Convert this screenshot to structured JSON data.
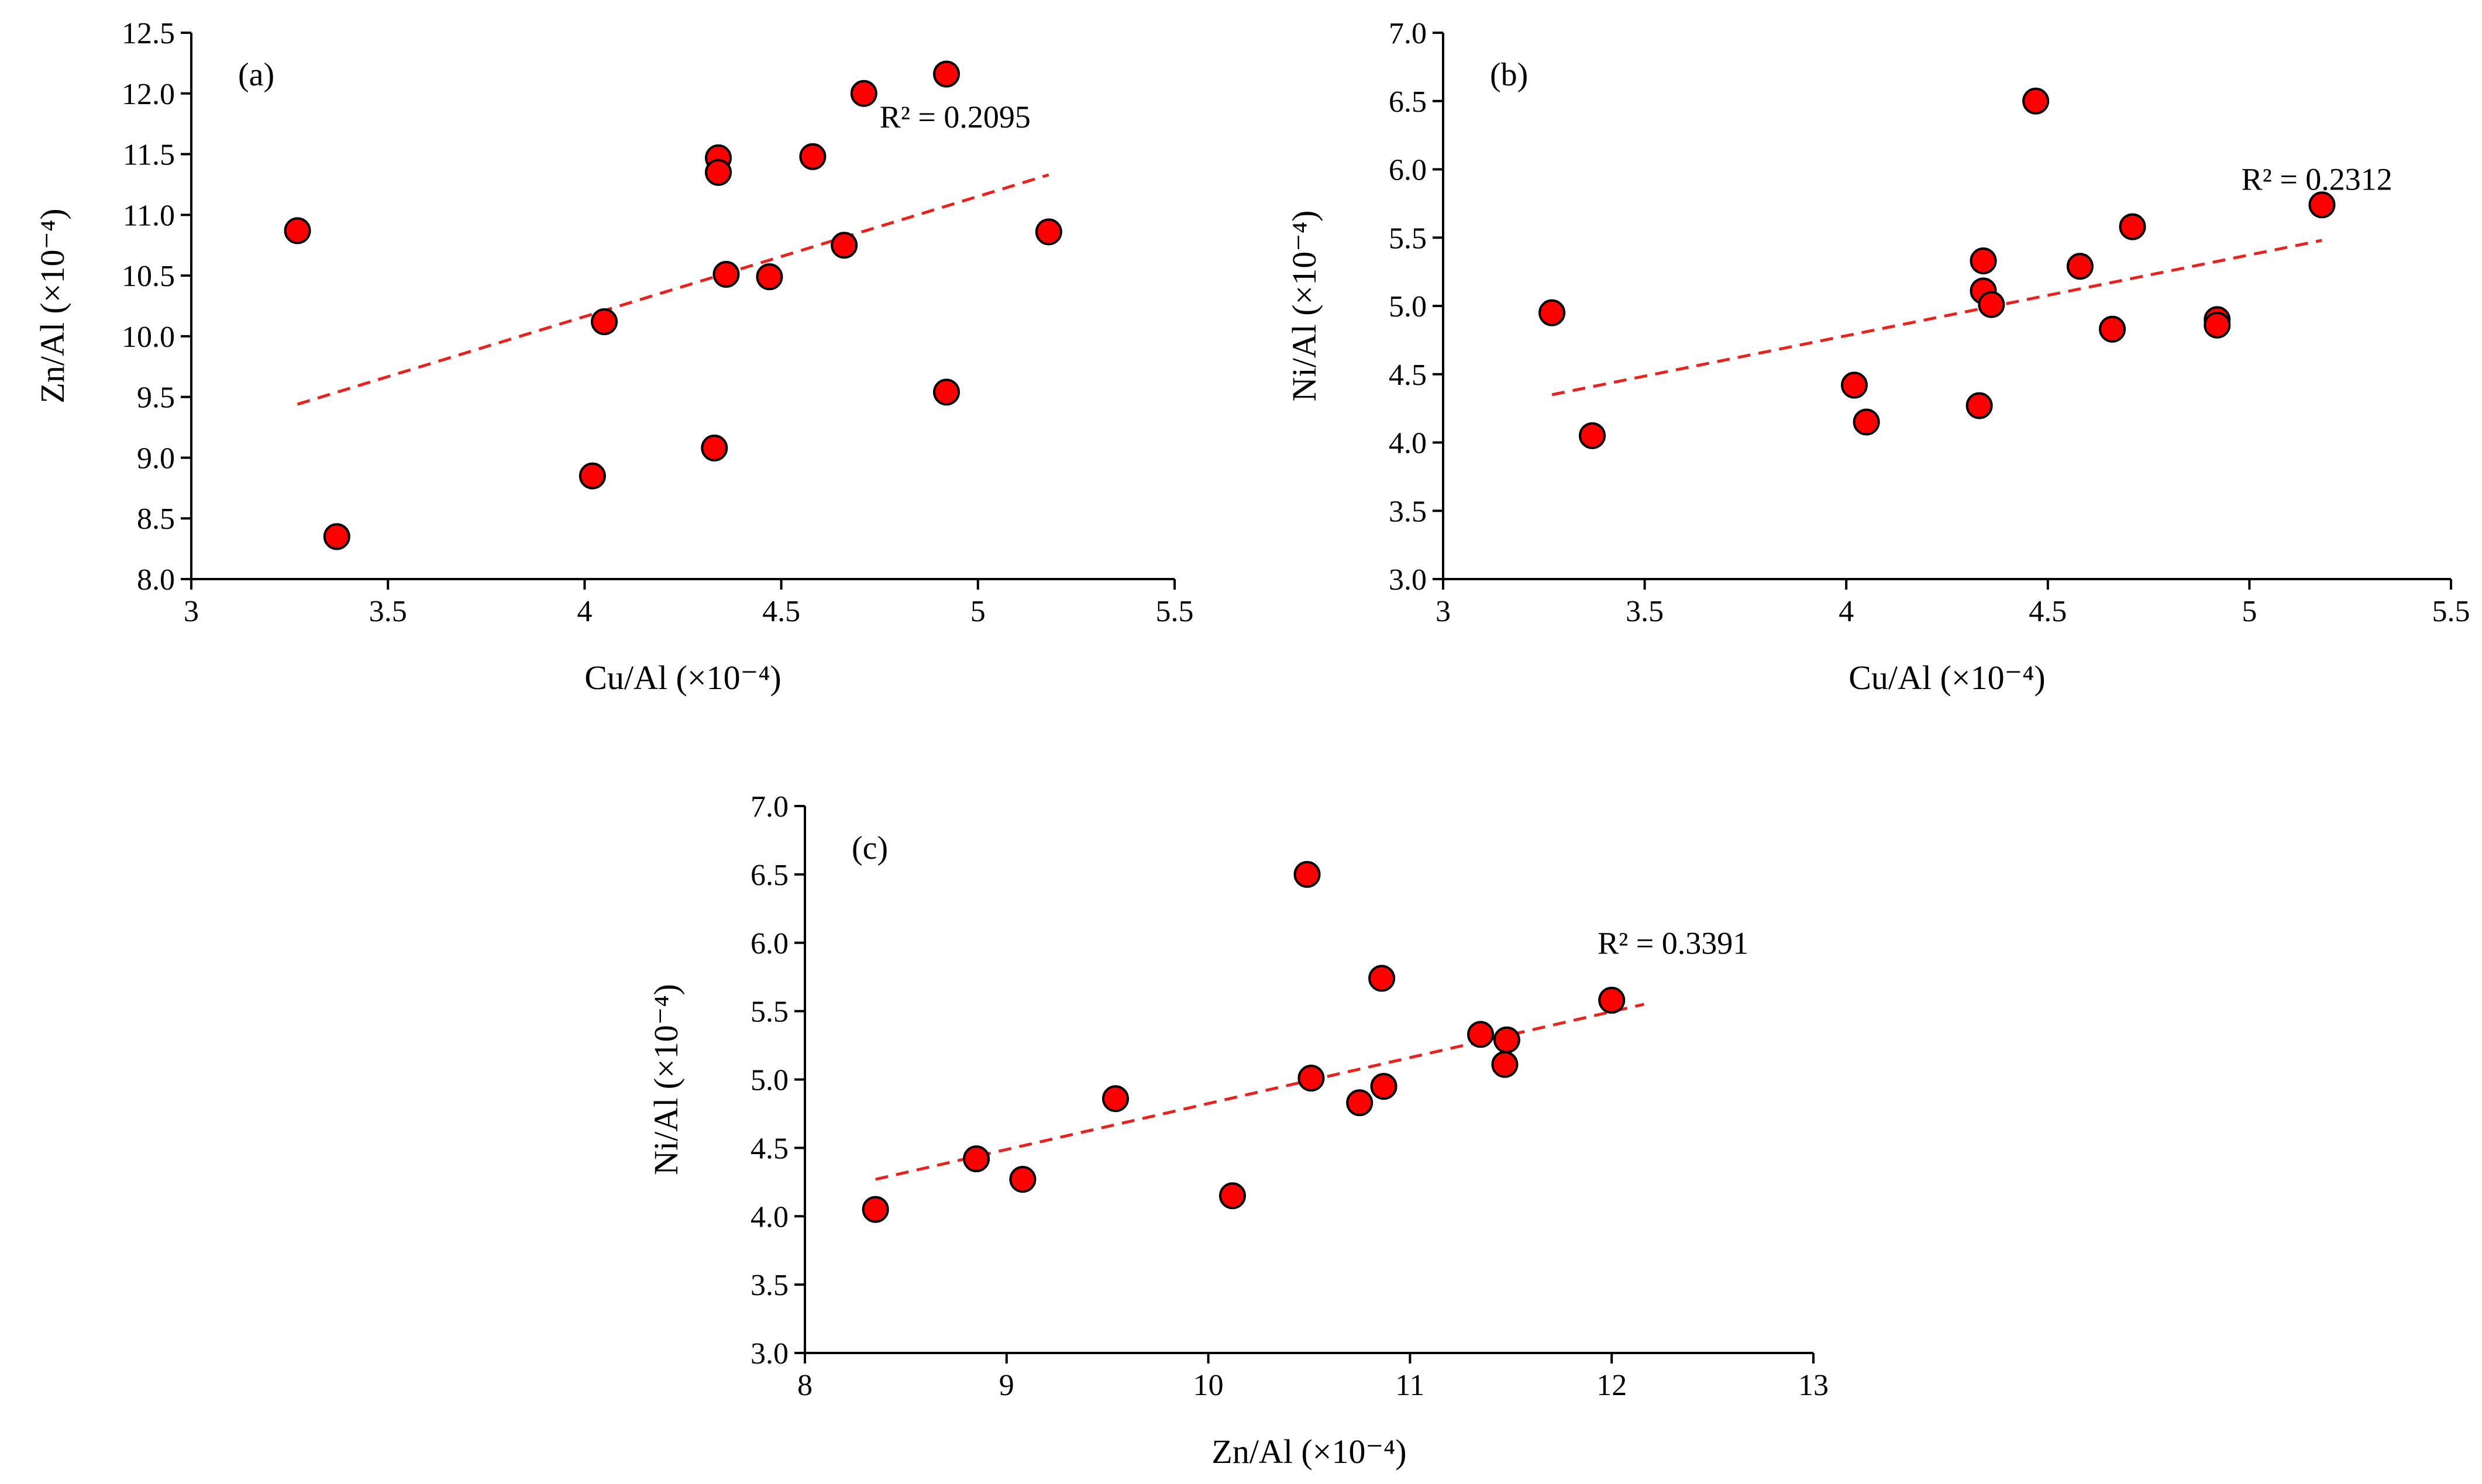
{
  "figure": {
    "marker_color": "#ff0000",
    "marker_edge": "#000000",
    "trend_color": "#e8231e"
  },
  "chart_data": [
    {
      "type": "scatter",
      "panel": "(a)",
      "xlabel": "Cu/Al (×10⁻⁴)",
      "ylabel": "Zn/Al (×10⁻⁴)",
      "xlim": [
        3,
        5.5
      ],
      "ylim": [
        8.0,
        12.5
      ],
      "xticks": [
        3,
        3.5,
        4,
        4.5,
        5,
        5.5
      ],
      "xtick_labels": [
        "3",
        "3.5",
        "4",
        "4.5",
        "5",
        "5.5"
      ],
      "yticks": [
        8.0,
        8.5,
        9.0,
        9.5,
        10.0,
        10.5,
        11.0,
        11.5,
        12.0,
        12.5
      ],
      "ytick_labels": [
        "8.0",
        "8.5",
        "9.0",
        "9.5",
        "10.0",
        "10.5",
        "11.0",
        "11.5",
        "12.0",
        "12.5"
      ],
      "r2_label": "R² = 0.2095",
      "trendline": {
        "x": [
          3.27,
          5.18
        ],
        "y": [
          9.44,
          11.33
        ]
      },
      "r2_anchor": {
        "x": 4.75,
        "y": 11.72
      },
      "points": [
        {
          "x": 3.27,
          "y": 10.87
        },
        {
          "x": 3.37,
          "y": 8.35
        },
        {
          "x": 4.02,
          "y": 8.85
        },
        {
          "x": 4.05,
          "y": 10.12
        },
        {
          "x": 4.33,
          "y": 9.08
        },
        {
          "x": 4.34,
          "y": 11.47
        },
        {
          "x": 4.34,
          "y": 11.35
        },
        {
          "x": 4.36,
          "y": 10.51
        },
        {
          "x": 4.47,
          "y": 10.49
        },
        {
          "x": 4.58,
          "y": 11.48
        },
        {
          "x": 4.66,
          "y": 10.75
        },
        {
          "x": 4.71,
          "y": 12.0
        },
        {
          "x": 4.92,
          "y": 12.16
        },
        {
          "x": 4.92,
          "y": 9.54
        },
        {
          "x": 5.18,
          "y": 10.86
        }
      ]
    },
    {
      "type": "scatter",
      "panel": "(b)",
      "xlabel": "Cu/Al (×10⁻⁴)",
      "ylabel": "Ni/Al (×10⁻⁴)",
      "xlim": [
        3,
        5.5
      ],
      "ylim": [
        3.0,
        7.0
      ],
      "xticks": [
        3,
        3.5,
        4,
        4.5,
        5,
        5.5
      ],
      "xtick_labels": [
        "3",
        "3.5",
        "4",
        "4.5",
        "5",
        "5.5"
      ],
      "yticks": [
        3.0,
        3.5,
        4.0,
        4.5,
        5.0,
        5.5,
        6.0,
        6.5,
        7.0
      ],
      "ytick_labels": [
        "3.0",
        "3.5",
        "4.0",
        "4.5",
        "5.0",
        "5.5",
        "6.0",
        "6.5",
        "7.0"
      ],
      "r2_label": "R² = 0.2312",
      "trendline": {
        "x": [
          3.27,
          5.18
        ],
        "y": [
          4.35,
          5.48
        ]
      },
      "r2_anchor": {
        "x": 4.98,
        "y": 5.85
      },
      "points": [
        {
          "x": 3.27,
          "y": 4.95
        },
        {
          "x": 3.37,
          "y": 4.05
        },
        {
          "x": 4.02,
          "y": 4.42
        },
        {
          "x": 4.05,
          "y": 4.15
        },
        {
          "x": 4.33,
          "y": 4.27
        },
        {
          "x": 4.34,
          "y": 5.33
        },
        {
          "x": 4.34,
          "y": 5.11
        },
        {
          "x": 4.36,
          "y": 5.01
        },
        {
          "x": 4.47,
          "y": 6.5
        },
        {
          "x": 4.58,
          "y": 5.29
        },
        {
          "x": 4.66,
          "y": 4.83
        },
        {
          "x": 4.71,
          "y": 5.58
        },
        {
          "x": 4.92,
          "y": 4.9
        },
        {
          "x": 4.92,
          "y": 4.86
        },
        {
          "x": 5.18,
          "y": 5.74
        }
      ]
    },
    {
      "type": "scatter",
      "panel": "(c)",
      "xlabel": "Zn/Al (×10⁻⁴)",
      "ylabel": "Ni/Al (×10⁻⁴)",
      "xlim": [
        8,
        13
      ],
      "ylim": [
        3.0,
        7.0
      ],
      "xticks": [
        8,
        9,
        10,
        11,
        12,
        13
      ],
      "xtick_labels": [
        "8",
        "9",
        "10",
        "11",
        "12",
        "13"
      ],
      "yticks": [
        3.0,
        3.5,
        4.0,
        4.5,
        5.0,
        5.5,
        6.0,
        6.5,
        7.0
      ],
      "ytick_labels": [
        "3.0",
        "3.5",
        "4.0",
        "4.5",
        "5.0",
        "5.5",
        "6.0",
        "6.5",
        "7.0"
      ],
      "r2_label": "R² = 0.3391",
      "trendline": {
        "x": [
          8.35,
          12.16
        ],
        "y": [
          4.27,
          5.55
        ]
      },
      "r2_anchor": {
        "x": 11.93,
        "y": 5.92
      },
      "points": [
        {
          "x": 8.35,
          "y": 4.05
        },
        {
          "x": 8.85,
          "y": 4.42
        },
        {
          "x": 9.08,
          "y": 4.27
        },
        {
          "x": 9.54,
          "y": 4.86
        },
        {
          "x": 10.12,
          "y": 4.15
        },
        {
          "x": 10.49,
          "y": 6.5
        },
        {
          "x": 10.51,
          "y": 5.01
        },
        {
          "x": 10.75,
          "y": 4.83
        },
        {
          "x": 10.86,
          "y": 5.74
        },
        {
          "x": 10.87,
          "y": 4.95
        },
        {
          "x": 11.35,
          "y": 5.33
        },
        {
          "x": 11.47,
          "y": 5.11
        },
        {
          "x": 11.48,
          "y": 5.29
        },
        {
          "x": 12.0,
          "y": 5.58
        }
      ]
    }
  ]
}
